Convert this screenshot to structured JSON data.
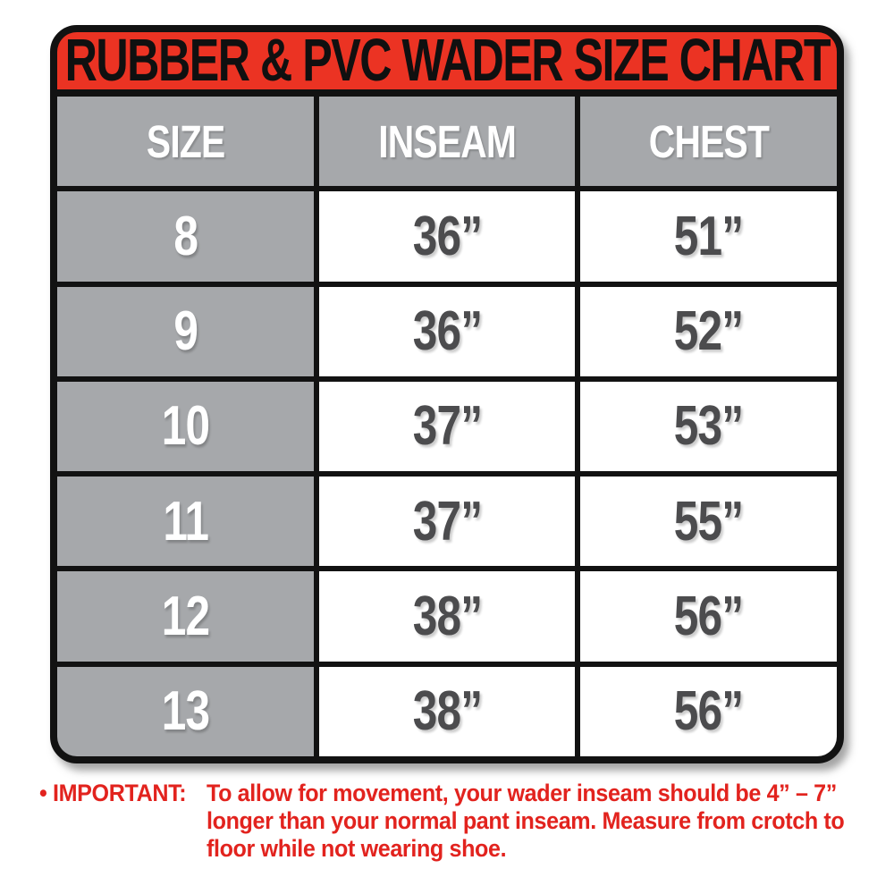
{
  "chart_data": {
    "type": "table",
    "title": "RUBBER & PVC WADER SIZE CHART",
    "columns": [
      "SIZE",
      "INSEAM",
      "CHEST"
    ],
    "rows": [
      [
        "8",
        "36”",
        "51”"
      ],
      [
        "9",
        "36”",
        "52”"
      ],
      [
        "10",
        "37”",
        "53”"
      ],
      [
        "11",
        "37”",
        "55”"
      ],
      [
        "12",
        "38”",
        "56”"
      ],
      [
        "13",
        "38”",
        "56”"
      ]
    ]
  },
  "note": {
    "label": "• IMPORTANT:",
    "lines": [
      "To allow for movement, your wader inseam should be 4” – 7”",
      "longer than your normal pant inseam. Measure from crotch to",
      "floor while not wearing shoe."
    ]
  },
  "colors": {
    "banner_red": "#EB3323",
    "note_red": "#E2231E",
    "cell_gray": "#A6A8AB",
    "value_text": "#4C4C4E",
    "border_black": "#121212"
  }
}
